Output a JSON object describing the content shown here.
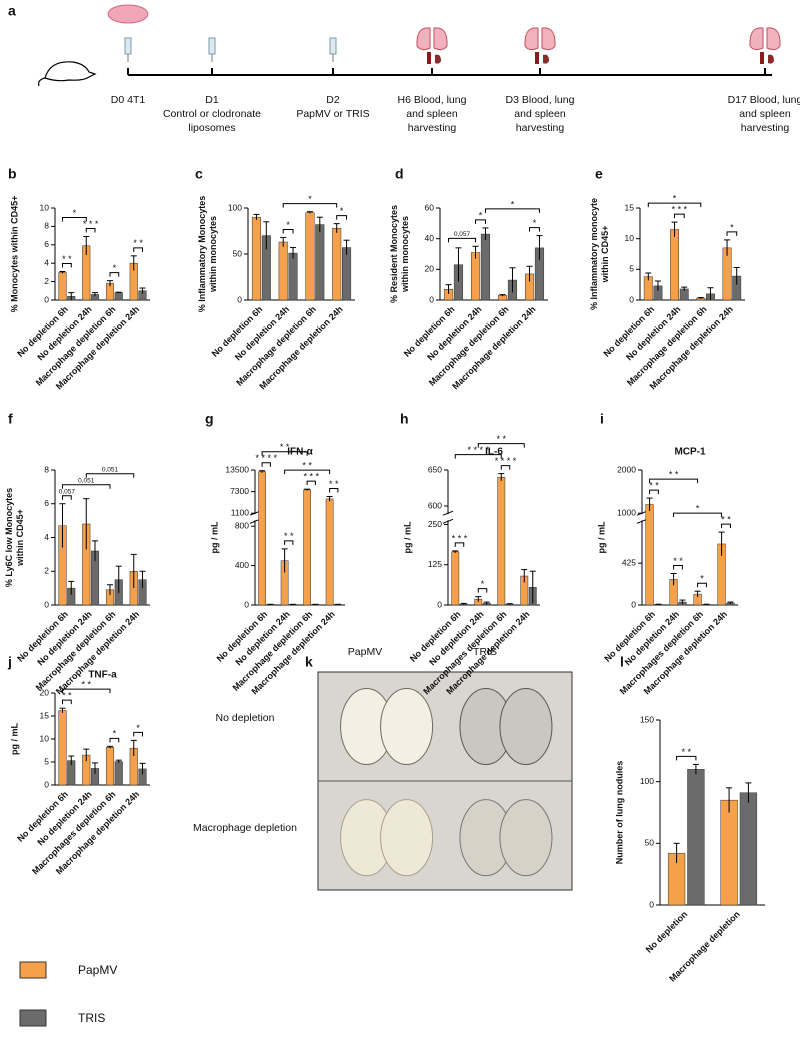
{
  "timeline": {
    "panel": "a",
    "events": [
      {
        "lines": [
          "D0 4T1"
        ]
      },
      {
        "lines": [
          "D1",
          "Control or clodronate",
          "liposomes"
        ]
      },
      {
        "lines": [
          "D2",
          "PapMV or TRIS"
        ]
      },
      {
        "lines": [
          "H6 Blood, lung",
          "and spleen",
          "harvesting"
        ]
      },
      {
        "lines": [
          "D3 Blood, lung",
          "and spleen",
          "harvesting"
        ]
      },
      {
        "lines": [
          "D17 Blood, lung",
          "and spleen",
          "harvesting"
        ]
      }
    ]
  },
  "photo": {
    "panel": "k",
    "columns": [
      "PapMV",
      "TRIS"
    ],
    "rows": [
      "No depletion",
      "Macrophage depletion"
    ]
  },
  "legend": [
    {
      "name": "PapMV",
      "color": "#f5a04a"
    },
    {
      "name": "TRIS",
      "color": "#6b6b6b"
    }
  ],
  "chart_data": [
    {
      "type": "bar",
      "panel": "b",
      "ylabel": [
        "% Monocytes within CD45+"
      ],
      "categories": [
        "No depletion 6h",
        "No depletion 24h",
        "Macrophage depletion 6h",
        "Macrophage depletion 24h"
      ],
      "series": [
        {
          "values": [
            3.0,
            5.9,
            1.8,
            4.0
          ],
          "errors": [
            0.1,
            1.0,
            0.3,
            0.8
          ]
        },
        {
          "values": [
            0.4,
            0.6,
            0.8,
            1.0
          ],
          "errors": [
            0.4,
            0.2,
            0.05,
            0.3
          ]
        }
      ],
      "ylim": [
        0,
        10
      ],
      "yticks": [
        0,
        2,
        4,
        6,
        8,
        10
      ],
      "annotations": [
        {
          "text": "* *",
          "from": [
            0,
            0
          ],
          "to": [
            0,
            1
          ]
        },
        {
          "text": "* * *",
          "from": [
            1,
            0
          ],
          "to": [
            1,
            1
          ]
        },
        {
          "text": "*",
          "from": [
            2,
            0
          ],
          "to": [
            2,
            1
          ]
        },
        {
          "text": "* *",
          "from": [
            3,
            0
          ],
          "to": [
            3,
            1
          ]
        },
        {
          "text": "*",
          "from": [
            0,
            0
          ],
          "to": [
            1,
            0
          ]
        }
      ]
    },
    {
      "type": "bar",
      "panel": "c",
      "ylabel": [
        "% Inflammatory Monocytes",
        "within monocytes"
      ],
      "categories": [
        "No depletion 6h",
        "No depletion 24h",
        "Macrophage depletion 6h",
        "Macrophage depletion 24h"
      ],
      "series": [
        {
          "values": [
            90,
            63,
            95,
            78
          ],
          "errors": [
            3,
            5,
            1,
            5
          ]
        },
        {
          "values": [
            70,
            51,
            82,
            57
          ],
          "errors": [
            15,
            6,
            8,
            8
          ]
        }
      ],
      "ylim": [
        0,
        100
      ],
      "yticks": [
        0,
        50,
        100
      ],
      "annotations": [
        {
          "text": "*",
          "from": [
            1,
            0
          ],
          "to": [
            1,
            1
          ]
        },
        {
          "text": "*",
          "from": [
            3,
            0
          ],
          "to": [
            3,
            1
          ]
        },
        {
          "text": "*",
          "from": [
            1,
            0
          ],
          "to": [
            3,
            0
          ]
        }
      ]
    },
    {
      "type": "bar",
      "panel": "d",
      "ylabel": [
        "% Resident Monocytes",
        "within monocytes"
      ],
      "categories": [
        "No depletion 6h",
        "No depletion 24h",
        "Macrophage depletion 6h",
        "Macrophage depletion 24h"
      ],
      "series": [
        {
          "values": [
            7,
            31,
            3,
            17
          ],
          "errors": [
            3,
            4,
            0.5,
            5
          ]
        },
        {
          "values": [
            23,
            43,
            13,
            34
          ],
          "errors": [
            11,
            4,
            8,
            8
          ]
        }
      ],
      "ylim": [
        0,
        60
      ],
      "yticks": [
        0,
        20,
        40,
        60
      ],
      "annotations": [
        {
          "text": "*",
          "from": [
            1,
            0
          ],
          "to": [
            1,
            1
          ]
        },
        {
          "text": "*",
          "from": [
            3,
            0
          ],
          "to": [
            3,
            1
          ]
        },
        {
          "text": "0,057",
          "from": [
            0,
            0
          ],
          "to": [
            1,
            0
          ]
        },
        {
          "text": "*",
          "from": [
            1,
            1
          ],
          "to": [
            3,
            1
          ]
        }
      ]
    },
    {
      "type": "bar",
      "panel": "e",
      "ylabel": [
        "% Inflammatory monocyte",
        "within CD45+"
      ],
      "categories": [
        "No depletion 6h",
        "No depletion 24h",
        "Macrophage depletion 6h",
        "Macrophage depletion 24h"
      ],
      "series": [
        {
          "values": [
            3.8,
            11.5,
            0.3,
            8.5
          ],
          "errors": [
            0.6,
            1.2,
            0.1,
            1.3
          ]
        },
        {
          "values": [
            2.3,
            1.8,
            1.0,
            3.9
          ],
          "errors": [
            0.8,
            0.3,
            1.0,
            1.4
          ]
        }
      ],
      "ylim": [
        0,
        15
      ],
      "yticks": [
        0,
        5,
        10,
        15
      ],
      "annotations": [
        {
          "text": "* * *",
          "from": [
            1,
            0
          ],
          "to": [
            1,
            1
          ]
        },
        {
          "text": "*",
          "from": [
            3,
            0
          ],
          "to": [
            3,
            1
          ]
        },
        {
          "text": "*",
          "from": [
            0,
            0
          ],
          "to": [
            2,
            0
          ]
        }
      ]
    },
    {
      "type": "bar",
      "panel": "f",
      "ylabel": [
        "% Ly6C low Monocytes",
        "within CD45+"
      ],
      "categories": [
        "No depletion 6h",
        "No depletion 24h",
        "Macrophage depletion 6h",
        "Macrophage depletion 24h"
      ],
      "series": [
        {
          "values": [
            4.7,
            4.8,
            0.9,
            2.0
          ],
          "errors": [
            1.3,
            1.5,
            0.3,
            1.0
          ]
        },
        {
          "values": [
            1.0,
            3.2,
            1.5,
            1.5
          ],
          "errors": [
            0.4,
            0.6,
            0.8,
            0.5
          ]
        }
      ],
      "ylim": [
        0,
        8
      ],
      "yticks": [
        0,
        2,
        4,
        6,
        8
      ],
      "annotations": [
        {
          "text": "0,057",
          "from": [
            0,
            0
          ],
          "to": [
            0,
            1
          ]
        },
        {
          "text": "0,051",
          "from": [
            0,
            0
          ],
          "to": [
            2,
            0
          ]
        },
        {
          "text": "0,051",
          "from": [
            1,
            0
          ],
          "to": [
            3,
            0
          ]
        }
      ]
    },
    {
      "type": "bar",
      "panel": "g",
      "title": "IFN-α",
      "ylabel": [
        "pg / mL"
      ],
      "categories": [
        "No depletion 6h",
        "No depletion 24h",
        "Macrophage depletion 6h",
        "Macrophage depletion 24h"
      ],
      "series": [
        {
          "values": [
            13000,
            450,
            7800,
            5200
          ],
          "errors": [
            300,
            120,
            200,
            700
          ]
        },
        {
          "values": [
            5,
            5,
            5,
            5
          ],
          "errors": [
            2,
            2,
            2,
            2
          ]
        }
      ],
      "ylim": [
        0,
        13500
      ],
      "ybreak": [
        850,
        1100
      ],
      "yticks": [
        0,
        400,
        800,
        1100,
        7300,
        13500
      ],
      "annotations": [
        {
          "text": "* * * *",
          "from": [
            0,
            0
          ],
          "to": [
            0,
            1
          ]
        },
        {
          "text": "* *",
          "from": [
            1,
            0
          ],
          "to": [
            1,
            1
          ]
        },
        {
          "text": "* * *",
          "from": [
            2,
            0
          ],
          "to": [
            2,
            1
          ]
        },
        {
          "text": "* *",
          "from": [
            3,
            0
          ],
          "to": [
            3,
            1
          ]
        },
        {
          "text": "* *",
          "from": [
            0,
            0
          ],
          "to": [
            2,
            0
          ]
        },
        {
          "text": "* *",
          "from": [
            1,
            0
          ],
          "to": [
            3,
            0
          ]
        }
      ]
    },
    {
      "type": "bar",
      "panel": "h",
      "title": "IL-6",
      "ylabel": [
        "pg / mL"
      ],
      "categories": [
        "No depletion 6h",
        "No depletion 24h",
        "Macrophages depletion 6h",
        "Macrophage depletion 24h"
      ],
      "series": [
        {
          "values": [
            165,
            18,
            640,
            90
          ],
          "errors": [
            3,
            8,
            5,
            20
          ]
        },
        {
          "values": [
            3,
            5,
            3,
            55
          ],
          "errors": [
            2,
            4,
            1,
            50
          ]
        }
      ],
      "ylim": [
        0,
        650
      ],
      "ybreak": [
        260,
        590
      ],
      "yticks": [
        0,
        125,
        250,
        600,
        650
      ],
      "annotations": [
        {
          "text": "* * *",
          "from": [
            0,
            0
          ],
          "to": [
            0,
            1
          ]
        },
        {
          "text": "*",
          "from": [
            1,
            0
          ],
          "to": [
            1,
            1
          ]
        },
        {
          "text": "* * * *",
          "from": [
            2,
            0
          ],
          "to": [
            2,
            1
          ]
        },
        {
          "text": "* * * *",
          "from": [
            0,
            0
          ],
          "to": [
            2,
            0
          ]
        },
        {
          "text": "* *",
          "from": [
            1,
            0
          ],
          "to": [
            3,
            0
          ]
        }
      ]
    },
    {
      "type": "bar",
      "panel": "i",
      "title": "MCP-1",
      "ylabel": [
        "pg / mL"
      ],
      "categories": [
        "No depletion 6h",
        "No depletion 24h",
        "Macrophages depletion 6h",
        "Macrophage depletion 24h"
      ],
      "series": [
        {
          "values": [
            1200,
            260,
            110,
            620
          ],
          "errors": [
            150,
            60,
            30,
            120
          ]
        },
        {
          "values": [
            5,
            30,
            5,
            20
          ],
          "errors": [
            3,
            20,
            3,
            10
          ]
        }
      ],
      "ylim": [
        0,
        2000
      ],
      "ybreak": [
        850,
        1000
      ],
      "yticks": [
        0,
        425,
        1000,
        2000
      ],
      "annotations": [
        {
          "text": "* *",
          "from": [
            0,
            0
          ],
          "to": [
            0,
            1
          ]
        },
        {
          "text": "* *",
          "from": [
            1,
            0
          ],
          "to": [
            1,
            1
          ]
        },
        {
          "text": "*",
          "from": [
            2,
            0
          ],
          "to": [
            2,
            1
          ]
        },
        {
          "text": "* *",
          "from": [
            3,
            0
          ],
          "to": [
            3,
            1
          ]
        },
        {
          "text": "* *",
          "from": [
            0,
            0
          ],
          "to": [
            2,
            0
          ]
        },
        {
          "text": "*",
          "from": [
            1,
            0
          ],
          "to": [
            3,
            0
          ]
        }
      ]
    },
    {
      "type": "bar",
      "panel": "j",
      "title": "TNF-a",
      "ylabel": [
        "pg / mL"
      ],
      "categories": [
        "No depletion 6h",
        "No depletion 24h",
        "Macrophages depletion 6h",
        "Macrophage depletion 24h"
      ],
      "series": [
        {
          "values": [
            16.2,
            6.5,
            8.2,
            8.0
          ],
          "errors": [
            0.5,
            1.3,
            0.2,
            1.7
          ]
        },
        {
          "values": [
            5.3,
            3.6,
            5.1,
            3.5
          ],
          "errors": [
            1.0,
            1.2,
            0.3,
            1.2
          ]
        }
      ],
      "ylim": [
        0,
        20
      ],
      "yticks": [
        0,
        5,
        10,
        15,
        20
      ],
      "annotations": [
        {
          "text": "* *",
          "from": [
            0,
            0
          ],
          "to": [
            0,
            1
          ]
        },
        {
          "text": "*",
          "from": [
            2,
            0
          ],
          "to": [
            2,
            1
          ]
        },
        {
          "text": "*",
          "from": [
            3,
            0
          ],
          "to": [
            3,
            1
          ]
        },
        {
          "text": "* *",
          "from": [
            0,
            0
          ],
          "to": [
            2,
            0
          ]
        }
      ]
    },
    {
      "type": "bar",
      "panel": "l",
      "ylabel": [
        "Number of lung nodules"
      ],
      "categories": [
        "No depletion",
        "Macrophage depletion"
      ],
      "series": [
        {
          "values": [
            42,
            85
          ],
          "errors": [
            8,
            10
          ]
        },
        {
          "values": [
            110,
            91
          ],
          "errors": [
            4,
            8
          ]
        }
      ],
      "ylim": [
        0,
        150
      ],
      "yticks": [
        0,
        50,
        100,
        150
      ],
      "annotations": [
        {
          "text": "* *",
          "from": [
            0,
            0
          ],
          "to": [
            0,
            1
          ]
        }
      ]
    }
  ]
}
